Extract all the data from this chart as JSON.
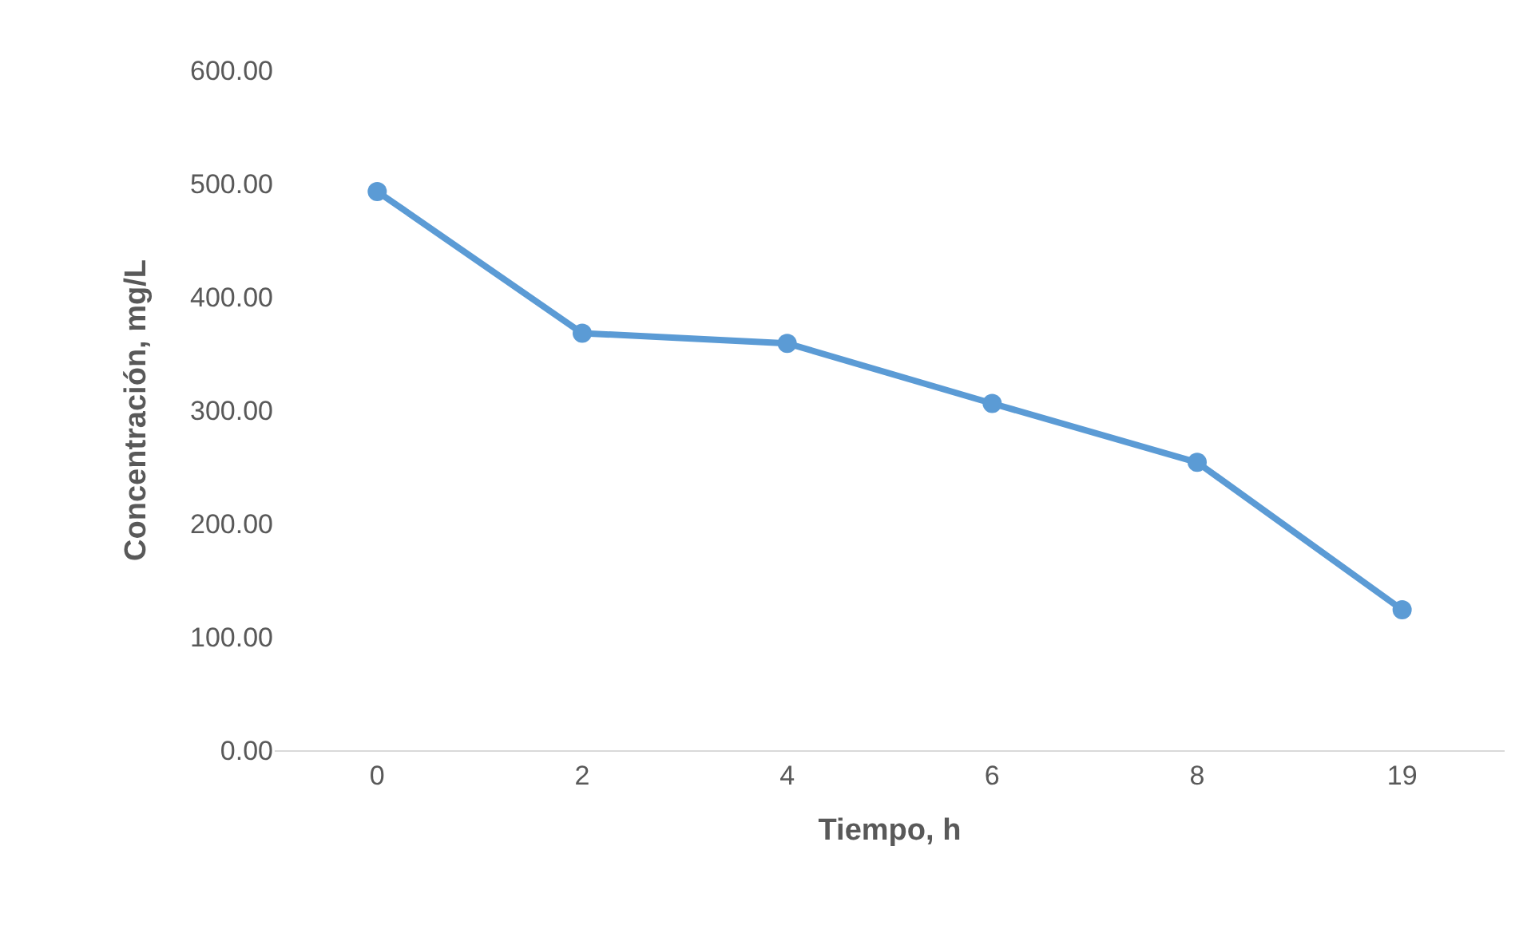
{
  "chart_data": {
    "type": "line",
    "xlabel": "Tiempo, h",
    "ylabel": "Concentración, mg/L",
    "categories": [
      "0",
      "2",
      "4",
      "6",
      "8",
      "19"
    ],
    "series": [
      {
        "color": "#5b9bd5",
        "values": [
          493,
          368,
          359,
          306,
          254,
          124
        ]
      }
    ],
    "ylim": [
      0,
      600
    ],
    "yticks": [
      {
        "value": 0,
        "label": "0.00"
      },
      {
        "value": 100,
        "label": "100.00"
      },
      {
        "value": 200,
        "label": "200.00"
      },
      {
        "value": 300,
        "label": "300.00"
      },
      {
        "value": 400,
        "label": "400.00"
      },
      {
        "value": 500,
        "label": "500.00"
      },
      {
        "value": 600,
        "label": "600.00"
      }
    ],
    "marker": "circle",
    "line_style": "solid",
    "grid": false,
    "legend": false
  }
}
